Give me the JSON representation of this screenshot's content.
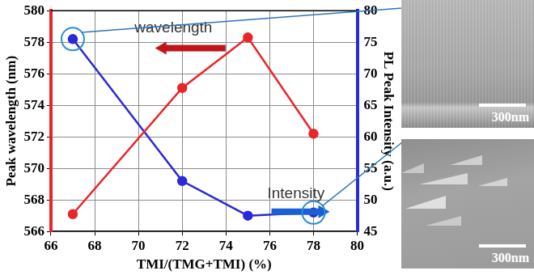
{
  "chart_data": {
    "type": "line",
    "x_label": "TMI/(TMG+TMI) (%)",
    "y_label": "Peak wavelength (nm)",
    "y2_label": "PL Peak Intensity (a.u.)",
    "x": [
      67,
      72,
      75,
      78
    ],
    "series": [
      {
        "name": "wavelength",
        "color": "#e8262a",
        "values": [
          567.1,
          575.1,
          578.3,
          572.2
        ]
      },
      {
        "name": "Intensity",
        "color": "#2a2ad6",
        "values": [
          75.5,
          53.0,
          47.5,
          48.0
        ],
        "axis": "y2"
      }
    ],
    "xlim": [
      66,
      80
    ],
    "xticks": [
      66,
      68,
      70,
      72,
      74,
      76,
      78,
      80
    ],
    "ylim": [
      566,
      580
    ],
    "yticks": [
      566,
      568,
      570,
      572,
      574,
      576,
      578,
      580
    ],
    "y2lim": [
      45,
      80
    ],
    "y2ticks": [
      45,
      50,
      55,
      60,
      65,
      70,
      75,
      80
    ],
    "grid": true,
    "marker": "circle",
    "legend": "none"
  },
  "images": [
    {
      "scale_bar": "300nm"
    },
    {
      "scale_bar": "300nm"
    }
  ]
}
